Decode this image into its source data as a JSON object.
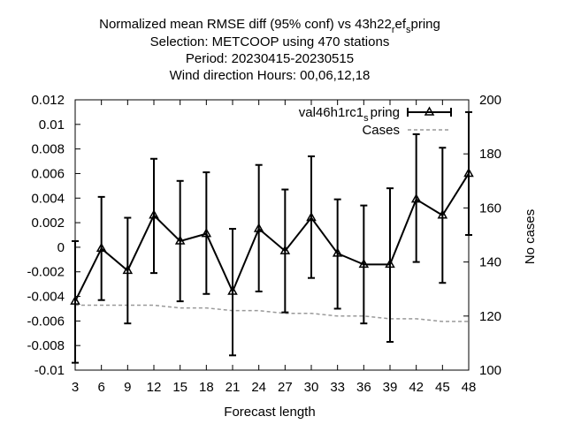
{
  "chart_data": {
    "type": "line",
    "title": [
      "Normalized mean RMSE diff (95% conf) vs 43h22_ref_spring",
      "Selection: METCOOP using   470 stations",
      "Period: 20230415-20230515",
      "Wind direction   Hours:  00,06,12,18"
    ],
    "xlabel": "Forecast length",
    "ylabel": "",
    "y2label": "No cases",
    "x": [
      3,
      6,
      9,
      12,
      15,
      18,
      21,
      24,
      27,
      30,
      33,
      36,
      39,
      42,
      45,
      48
    ],
    "xlim": [
      3,
      48
    ],
    "ylim": [
      -0.01,
      0.012
    ],
    "y2lim": [
      100,
      200
    ],
    "x_ticks": [
      "3",
      "6",
      "9",
      "12",
      "15",
      "18",
      "21",
      "24",
      "27",
      "30",
      "33",
      "36",
      "39",
      "42",
      "45",
      "48"
    ],
    "y_ticks": [
      "0.012",
      "0.01",
      "0.008",
      "0.006",
      "0.004",
      "0.002",
      "0",
      "-0.002",
      "-0.004",
      "-0.006",
      "-0.008",
      "-0.01"
    ],
    "y2_ticks": [
      "200",
      "180",
      "160",
      "140",
      "120",
      "100"
    ],
    "legend_position": "top-right",
    "series": [
      {
        "name": "val46h1rc1_spring",
        "axis": "left",
        "style": "errorbar-line",
        "color": "#000000",
        "values": [
          -0.0044,
          -0.0001,
          -0.0019,
          0.0026,
          0.0005,
          0.0011,
          -0.0036,
          0.0015,
          -0.0003,
          0.0024,
          -0.0005,
          -0.0014,
          -0.0014,
          0.0039,
          0.0026,
          0.006
        ],
        "lower": [
          -0.0094,
          -0.0043,
          -0.0062,
          -0.0021,
          -0.0044,
          -0.0038,
          -0.0088,
          -0.0036,
          -0.0053,
          -0.0025,
          -0.005,
          -0.0062,
          -0.0077,
          -0.0012,
          -0.0029,
          0.001
        ],
        "upper": [
          0.0005,
          0.0041,
          0.0024,
          0.0072,
          0.0054,
          0.0061,
          0.0015,
          0.0067,
          0.0047,
          0.0074,
          0.0039,
          0.0034,
          0.0048,
          0.0092,
          0.0081,
          0.011
        ]
      },
      {
        "name": "Cases",
        "axis": "right",
        "style": "dashed",
        "color": "#999999",
        "values": [
          124,
          124,
          124,
          124,
          123,
          123,
          122,
          122,
          121,
          121,
          120,
          120,
          119,
          119,
          118,
          118
        ]
      }
    ]
  },
  "legend": {
    "series_prefix": "val46h1rc1",
    "series_sub": "s",
    "series_suffix": "pring",
    "cases": "Cases"
  },
  "colors": {
    "series": "#000000",
    "cases": "#999999"
  }
}
